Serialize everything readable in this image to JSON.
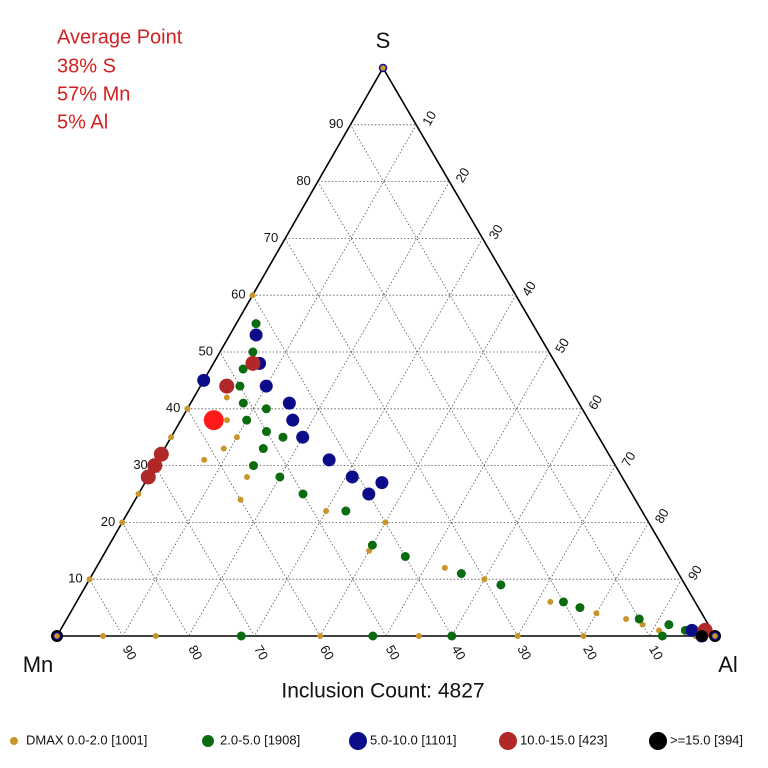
{
  "chart_data": {
    "type": "ternary",
    "axes": {
      "s": "S",
      "mn": "Mn",
      "al": "Al"
    },
    "footer": "Inclusion Count: 4827",
    "ticks": [
      10,
      20,
      30,
      40,
      50,
      60,
      70,
      80,
      90
    ],
    "grid": true,
    "average": {
      "title": "Average Point",
      "s": 38,
      "mn": 57,
      "al": 5,
      "color": "#ff1a1a",
      "labels": [
        "38% S",
        "57% Mn",
        "5% Al"
      ]
    },
    "series": [
      {
        "name": "DMAX 0.0-2.0 [1001]",
        "color": "#c9962b",
        "points": [
          [
            45,
            55,
            0
          ],
          [
            40,
            60,
            0
          ],
          [
            35,
            65,
            0
          ],
          [
            30,
            70,
            0
          ],
          [
            25,
            75,
            0
          ],
          [
            20,
            80,
            0
          ],
          [
            10,
            90,
            0
          ],
          [
            42,
            53,
            5
          ],
          [
            38,
            55,
            7
          ],
          [
            33,
            58,
            9
          ],
          [
            28,
            57,
            15
          ],
          [
            24,
            60,
            16
          ],
          [
            22,
            48,
            30
          ],
          [
            20,
            40,
            40
          ],
          [
            15,
            45,
            40
          ],
          [
            12,
            35,
            53
          ],
          [
            10,
            30,
            60
          ],
          [
            6,
            22,
            72
          ],
          [
            4,
            16,
            80
          ],
          [
            3,
            12,
            85
          ],
          [
            2,
            10,
            88
          ],
          [
            1,
            8,
            91
          ],
          [
            0,
            93,
            7
          ],
          [
            0,
            85,
            15
          ],
          [
            0,
            72,
            28
          ],
          [
            0,
            60,
            40
          ],
          [
            0,
            45,
            55
          ],
          [
            0,
            30,
            70
          ],
          [
            0,
            20,
            80
          ],
          [
            0,
            8,
            92
          ],
          [
            0,
            3,
            97
          ],
          [
            60,
            40,
            0
          ],
          [
            37,
            58,
            5
          ],
          [
            35,
            55,
            10
          ],
          [
            31,
            62,
            7
          ]
        ]
      },
      {
        "name": "2.0-5.0 [1908]",
        "color": "#0b6b10",
        "points": [
          [
            50,
            45,
            5
          ],
          [
            47,
            48,
            5
          ],
          [
            44,
            50,
            6
          ],
          [
            41,
            51,
            8
          ],
          [
            38,
            52,
            10
          ],
          [
            36,
            50,
            14
          ],
          [
            33,
            52,
            15
          ],
          [
            30,
            55,
            15
          ],
          [
            28,
            52,
            20
          ],
          [
            25,
            50,
            25
          ],
          [
            22,
            45,
            33
          ],
          [
            16,
            44,
            40
          ],
          [
            14,
            40,
            46
          ],
          [
            11,
            33,
            56
          ],
          [
            9,
            28,
            63
          ],
          [
            6,
            20,
            74
          ],
          [
            5,
            18,
            77
          ],
          [
            3,
            10,
            87
          ],
          [
            2,
            6,
            92
          ],
          [
            1,
            4,
            95
          ],
          [
            0,
            72,
            28
          ],
          [
            0,
            52,
            48
          ],
          [
            0,
            40,
            60
          ],
          [
            0,
            8,
            92
          ],
          [
            55,
            42,
            3
          ],
          [
            40,
            48,
            12
          ],
          [
            35,
            48,
            17
          ]
        ]
      },
      {
        "name": "5.0-10.0 [1101]",
        "color": "#0c0c8a",
        "points": [
          [
            53,
            43,
            4
          ],
          [
            48,
            45,
            7
          ],
          [
            44,
            46,
            10
          ],
          [
            41,
            44,
            15
          ],
          [
            38,
            45,
            17
          ],
          [
            35,
            45,
            20
          ],
          [
            31,
            43,
            26
          ],
          [
            28,
            41,
            31
          ],
          [
            27,
            37,
            36
          ],
          [
            25,
            40,
            35
          ],
          [
            0,
            2,
            98
          ],
          [
            1,
            3,
            96
          ],
          [
            45,
            55,
            0
          ],
          [
            32,
            68,
            0
          ]
        ]
      },
      {
        "name": "10.0-15.0 [423]",
        "color": "#b02828",
        "points": [
          [
            48,
            46,
            6
          ],
          [
            44,
            52,
            4
          ],
          [
            32,
            68,
            0
          ],
          [
            30,
            70,
            0
          ],
          [
            28,
            72,
            0
          ],
          [
            1,
            1,
            98
          ]
        ]
      },
      {
        "name": ">=15.0 [394]",
        "color": "#000000",
        "points": [
          [
            0,
            2,
            98
          ],
          [
            0,
            0,
            100
          ],
          [
            0,
            100,
            0
          ]
        ]
      }
    ]
  }
}
